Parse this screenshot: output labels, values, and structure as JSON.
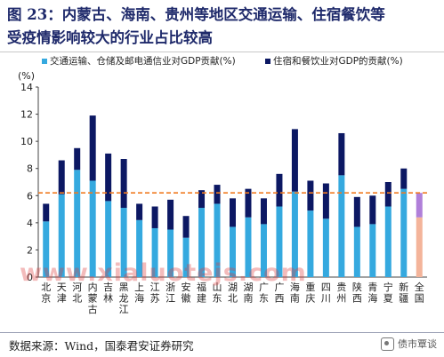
{
  "title": {
    "line1": "图 23：内蒙古、海南、贵州等地区交通运输、住宿餐饮等",
    "line2": "受疫情影响较大的行业占比较高"
  },
  "source": "数据来源：Wind，国泰君安证券研究",
  "watermark": "www.xialuotejs.com",
  "badge": "债市覃谈",
  "colors": {
    "series1": "#35a9df",
    "series2": "#0c1863",
    "national1": "#f4b49a",
    "national2": "#b07fd9",
    "ref_line": "#f07b21"
  },
  "chart_data": {
    "type": "bar",
    "stacked": true,
    "ylabel": "(%)",
    "ylim": [
      0,
      14
    ],
    "yticks": [
      0,
      2,
      4,
      6,
      8,
      10,
      12,
      14
    ],
    "grid": false,
    "legend_position": "top",
    "categories": [
      "北京",
      "天津",
      "河北",
      "内蒙古",
      "吉林",
      "黑龙江",
      "上海",
      "江苏",
      "浙江",
      "安徽",
      "福建",
      "山东",
      "湖北",
      "湖南",
      "广东",
      "广西",
      "海南",
      "重庆",
      "四川",
      "贵州",
      "陕西",
      "青海",
      "宁夏",
      "新疆",
      "全国"
    ],
    "category_labels": [
      [
        "北",
        "京"
      ],
      [
        "天",
        "津"
      ],
      [
        "河",
        "北"
      ],
      [
        "内",
        "蒙",
        "古"
      ],
      [
        "吉",
        "林"
      ],
      [
        "黑",
        "龙",
        "江"
      ],
      [
        "上",
        "海"
      ],
      [
        "江",
        "苏"
      ],
      [
        "浙",
        "江"
      ],
      [
        "安",
        "徽"
      ],
      [
        "福",
        "建"
      ],
      [
        "山",
        "东"
      ],
      [
        "湖",
        "北"
      ],
      [
        "湖",
        "南"
      ],
      [
        "广",
        "东"
      ],
      [
        "广",
        "西"
      ],
      [
        "海",
        "南"
      ],
      [
        "重",
        "庆"
      ],
      [
        "四",
        "川"
      ],
      [
        "贵",
        "州"
      ],
      [
        "陕",
        "西"
      ],
      [
        "青",
        "海"
      ],
      [
        "宁",
        "夏"
      ],
      [
        "新",
        "疆"
      ],
      [
        "全",
        "国"
      ]
    ],
    "series": [
      {
        "name": "交通运输、仓储及邮电通信业对GDP贡献(%)",
        "values": [
          4.1,
          6.1,
          7.9,
          7.1,
          5.6,
          5.1,
          4.2,
          3.6,
          3.5,
          2.9,
          5.1,
          5.4,
          3.7,
          4.4,
          3.9,
          5.2,
          6.3,
          4.9,
          4.3,
          7.5,
          3.7,
          3.9,
          5.2,
          6.5,
          4.4
        ]
      },
      {
        "name": "住宿和餐饮业对GDP的贡献(%)",
        "values": [
          1.3,
          2.5,
          1.6,
          4.8,
          3.5,
          3.6,
          1.2,
          1.6,
          2.2,
          1.6,
          1.3,
          1.4,
          2.1,
          2.1,
          1.9,
          2.4,
          4.6,
          2.2,
          2.6,
          3.1,
          2.2,
          2.1,
          1.8,
          1.5,
          1.8
        ]
      }
    ],
    "reference_line": {
      "y": 6.2,
      "style": "dashed"
    }
  }
}
